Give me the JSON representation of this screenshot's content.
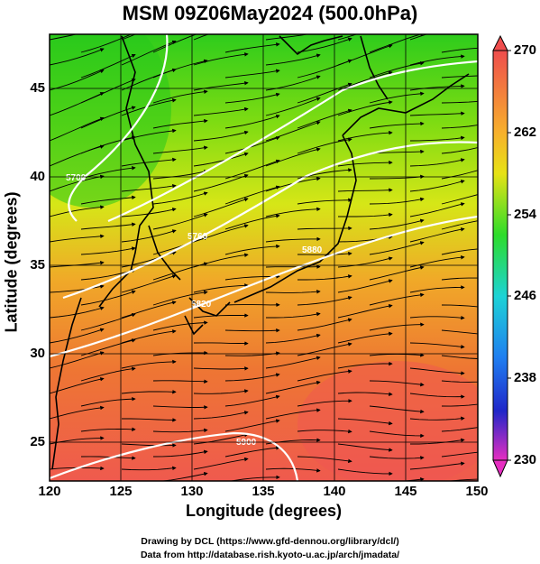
{
  "title": "MSM 09Z06May2024 (500.0hPa)",
  "xaxis": {
    "label": "Longitude (degrees)",
    "ticks": [
      "120",
      "125",
      "130",
      "135",
      "140",
      "145",
      "150"
    ],
    "range": [
      120,
      150
    ]
  },
  "yaxis": {
    "label": "Latitude  (degrees)",
    "ticks": [
      "25",
      "30",
      "35",
      "40",
      "45"
    ],
    "range": [
      22.5,
      47.5
    ]
  },
  "colorbar": {
    "ticks": [
      "270",
      "262",
      "254",
      "246",
      "238",
      "230"
    ],
    "range": [
      230,
      270
    ]
  },
  "contour_labels": [
    "5700",
    "5760",
    "5820",
    "5880",
    "5900"
  ],
  "footer": {
    "line1": "Drawing by DCL (https://www.gfd-dennou.org/library/dcl/)",
    "line2": "Data from http://database.rish.kyoto-u.ac.jp/arch/jmadata/"
  },
  "colors": {
    "coast": "#000000",
    "contour": "#ffffff",
    "stream": "#000000"
  }
}
